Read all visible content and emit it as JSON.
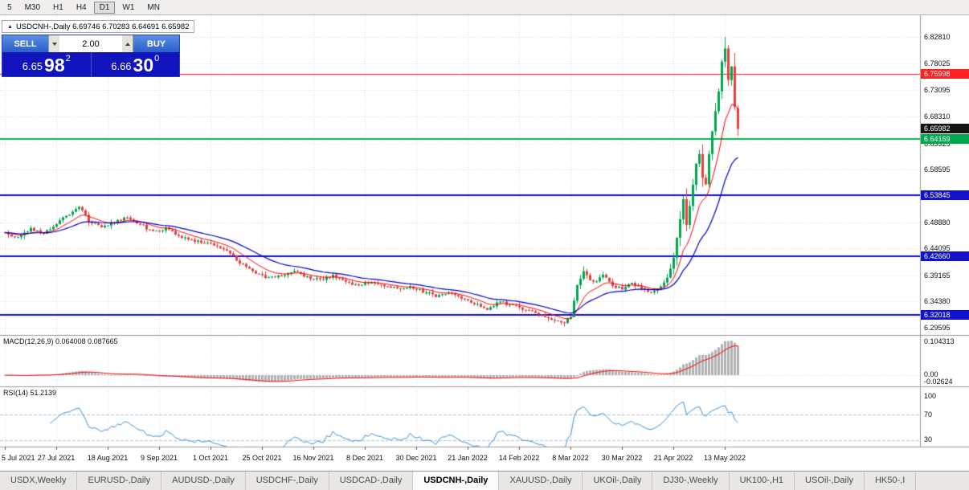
{
  "toolbar": {
    "timeframes": [
      {
        "label": "5",
        "active": false
      },
      {
        "label": "M30",
        "active": false
      },
      {
        "label": "H1",
        "active": false
      },
      {
        "label": "H4",
        "active": false
      },
      {
        "label": "D1",
        "active": true
      },
      {
        "label": "W1",
        "active": false
      },
      {
        "label": "MN",
        "active": false
      }
    ]
  },
  "chart_header": {
    "collapse_arrow": "▲",
    "title": "USDCNH-,Daily 6.69746 6.70283 6.64691 6.65982"
  },
  "trade_panel": {
    "sell_label": "SELL",
    "buy_label": "BUY",
    "volume": "2.00",
    "sell_price": {
      "prefix": "6.65",
      "big": "98",
      "sup": "2"
    },
    "buy_price": {
      "prefix": "6.66",
      "big": "30",
      "sup": "0"
    }
  },
  "price_axis": {
    "regular": [
      "6.82810",
      "6.78025",
      "6.73095",
      "6.68310",
      "6.63325",
      "6.58595",
      "6.48880",
      "6.44095",
      "6.39165",
      "6.34380",
      "6.29595"
    ],
    "special": [
      {
        "value": "6.75998",
        "color": "#ff2020",
        "type": "resistance-line-price-label"
      },
      {
        "value": "6.65982",
        "color": "#141414",
        "type": "current-bid-price-label"
      },
      {
        "value": "6.64169",
        "color": "#00a94f",
        "type": "support-line-price-label"
      },
      {
        "value": "6.53845",
        "color": "#1212cc",
        "type": "level-line-price-label"
      },
      {
        "value": "6.42660",
        "color": "#1212cc",
        "type": "level-line-price-label"
      },
      {
        "value": "6.32018",
        "color": "#1212cc",
        "type": "level-line-price-label"
      }
    ]
  },
  "macd": {
    "label": "MACD(12,26,9) 0.064008 0.087665",
    "axis": [
      "0.104313",
      "0.00",
      "-0.02624"
    ]
  },
  "rsi": {
    "label": "RSI(14) 51.2139",
    "axis": [
      "100",
      "70",
      "30"
    ]
  },
  "date_axis": [
    "5 Jul 2021",
    "27 Jul 2021",
    "18 Aug 2021",
    "9 Sep 2021",
    "1 Oct 2021",
    "25 Oct 2021",
    "16 Nov 2021",
    "8 Dec 2021",
    "30 Dec 2021",
    "21 Jan 2022",
    "14 Feb 2022",
    "8 Mar 2022",
    "30 Mar 2022",
    "21 Apr 2022",
    "13 May 2022"
  ],
  "tabs": [
    {
      "label": "USDX,Weekly",
      "active": false
    },
    {
      "label": "EURUSD-,Daily",
      "active": false
    },
    {
      "label": "AUDUSD-,Daily",
      "active": false
    },
    {
      "label": "USDCHF-,Daily",
      "active": false
    },
    {
      "label": "USDCAD-,Daily",
      "active": false
    },
    {
      "label": "USDCNH-,Daily",
      "active": true
    },
    {
      "label": "XAUUSD-,Daily",
      "active": false
    },
    {
      "label": "UKOil-,Daily",
      "active": false
    },
    {
      "label": "DJ30-,Weekly",
      "active": false
    },
    {
      "label": "UK100-,H1",
      "active": false
    },
    {
      "label": "USOil-,Daily",
      "active": false
    },
    {
      "label": "HK50-,I",
      "active": false
    }
  ],
  "chart_data": {
    "type": "candlestick",
    "symbol": "USDCNH",
    "timeframe": "Daily",
    "ohlc_current": {
      "open": 6.69746,
      "high": 6.70283,
      "low": 6.64691,
      "close": 6.65982
    },
    "bid": 6.65982,
    "ask": 6.663,
    "num_candles": 229,
    "date_tick_every_n_candles": 16,
    "price_range": {
      "top": 6.8281,
      "bottom": 6.29595
    },
    "grid_prices": [
      6.8281,
      6.78025,
      6.73095,
      6.6831,
      6.63325,
      6.58595,
      6.4888,
      6.44095,
      6.39165,
      6.3438,
      6.29595
    ],
    "hlines": {
      "red": 6.75998,
      "green": 6.64169,
      "blue": [
        6.53845,
        6.4266,
        6.32018
      ],
      "current": 6.65982
    },
    "close_anchors": [
      [
        0,
        6.47
      ],
      [
        4,
        6.461
      ],
      [
        8,
        6.476
      ],
      [
        12,
        6.468
      ],
      [
        16,
        6.487
      ],
      [
        20,
        6.504
      ],
      [
        23,
        6.518
      ],
      [
        26,
        6.492
      ],
      [
        30,
        6.479
      ],
      [
        34,
        6.489
      ],
      [
        38,
        6.499
      ],
      [
        42,
        6.486
      ],
      [
        46,
        6.471
      ],
      [
        50,
        6.477
      ],
      [
        54,
        6.464
      ],
      [
        58,
        6.456
      ],
      [
        62,
        6.451
      ],
      [
        66,
        6.445
      ],
      [
        70,
        6.431
      ],
      [
        74,
        6.411
      ],
      [
        78,
        6.397
      ],
      [
        82,
        6.386
      ],
      [
        86,
        6.393
      ],
      [
        90,
        6.399
      ],
      [
        94,
        6.389
      ],
      [
        98,
        6.383
      ],
      [
        102,
        6.391
      ],
      [
        106,
        6.379
      ],
      [
        110,
        6.373
      ],
      [
        114,
        6.381
      ],
      [
        118,
        6.374
      ],
      [
        122,
        6.367
      ],
      [
        126,
        6.37
      ],
      [
        130,
        6.362
      ],
      [
        134,
        6.354
      ],
      [
        138,
        6.361
      ],
      [
        142,
        6.351
      ],
      [
        146,
        6.341
      ],
      [
        150,
        6.331
      ],
      [
        154,
        6.343
      ],
      [
        158,
        6.337
      ],
      [
        162,
        6.329
      ],
      [
        166,
        6.319
      ],
      [
        170,
        6.312
      ],
      [
        174,
        6.305
      ],
      [
        176,
        6.317
      ],
      [
        177,
        6.345
      ],
      [
        178,
        6.374
      ],
      [
        180,
        6.398
      ],
      [
        183,
        6.379
      ],
      [
        186,
        6.391
      ],
      [
        189,
        6.373
      ],
      [
        192,
        6.367
      ],
      [
        195,
        6.379
      ],
      [
        198,
        6.366
      ],
      [
        201,
        6.361
      ],
      [
        204,
        6.373
      ],
      [
        206,
        6.387
      ],
      [
        208,
        6.424
      ],
      [
        210,
        6.494
      ],
      [
        211,
        6.53
      ],
      [
        212,
        6.483
      ],
      [
        213,
        6.519
      ],
      [
        214,
        6.559
      ],
      [
        215,
        6.596
      ],
      [
        216,
        6.613
      ],
      [
        217,
        6.572
      ],
      [
        218,
        6.556
      ],
      [
        219,
        6.614
      ],
      [
        220,
        6.653
      ],
      [
        221,
        6.694
      ],
      [
        222,
        6.727
      ],
      [
        223,
        6.781
      ],
      [
        224,
        6.805
      ],
      [
        225,
        6.748
      ],
      [
        226,
        6.772
      ],
      [
        227,
        6.7
      ],
      [
        228,
        6.65982
      ]
    ],
    "indicators": {
      "ma_fast_period": 10,
      "ma_slow_period": 25,
      "macd": {
        "fast": 12,
        "slow": 26,
        "signal": 9,
        "value": 0.064008,
        "signal_value": 0.087665,
        "scale_max": 0.104313,
        "scale_min": -0.02624
      },
      "rsi": {
        "period": 14,
        "value": 51.2139,
        "levels": [
          70,
          30
        ]
      }
    },
    "colors": {
      "up": "#00a550",
      "down": "#e93e3e",
      "ma_fast": "#ff0000",
      "ma_slow": "#0000c8",
      "macd_hist": "#b2b2b2",
      "macd_signal": "#ff0000",
      "rsi_line": "#3d8fd8",
      "rsi_level": "#a9c7e4",
      "grid": "#dadada",
      "red_line": "#ff2020",
      "green_line": "#00b44c",
      "blue_line": "#1212cc"
    },
    "seed": 20220520
  }
}
